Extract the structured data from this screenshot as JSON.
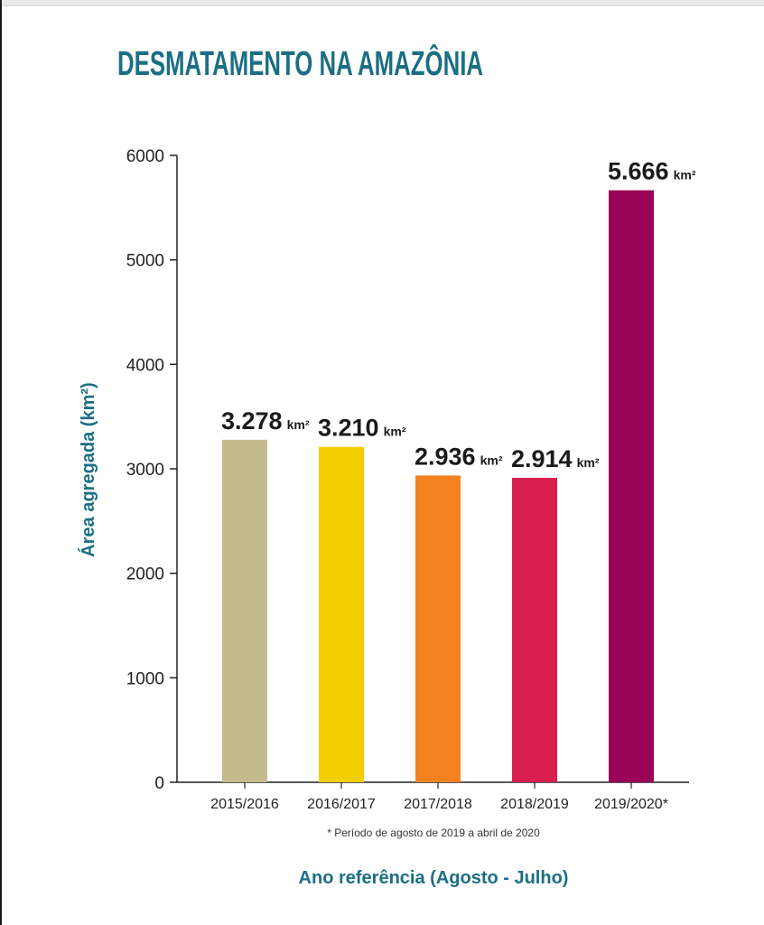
{
  "chart_data": {
    "type": "bar",
    "title": "DESMATAMENTO NA AMAZÔNIA",
    "categories": [
      "2015/2016",
      "2016/2017",
      "2017/2018",
      "2018/2019",
      "2019/2020*"
    ],
    "values": [
      3278,
      3210,
      2936,
      2914,
      5666
    ],
    "value_labels": [
      "3.278",
      "3.210",
      "2.936",
      "2.914",
      "5.666"
    ],
    "value_unit": "km²",
    "colors": [
      "#c3bb8e",
      "#f3cf00",
      "#f48221",
      "#d81f4f",
      "#9a0357"
    ],
    "ylabel": "Área agregada (km²)",
    "xlabel": "Ano referência (Agosto - Julho)",
    "ylim": [
      0,
      6000
    ],
    "yticks": [
      0,
      1000,
      2000,
      3000,
      4000,
      5000,
      6000
    ],
    "footnote": "* Período de agosto de 2019 a abril de 2020",
    "grid": false,
    "legend": "none",
    "title_color": "#1b6f84"
  }
}
